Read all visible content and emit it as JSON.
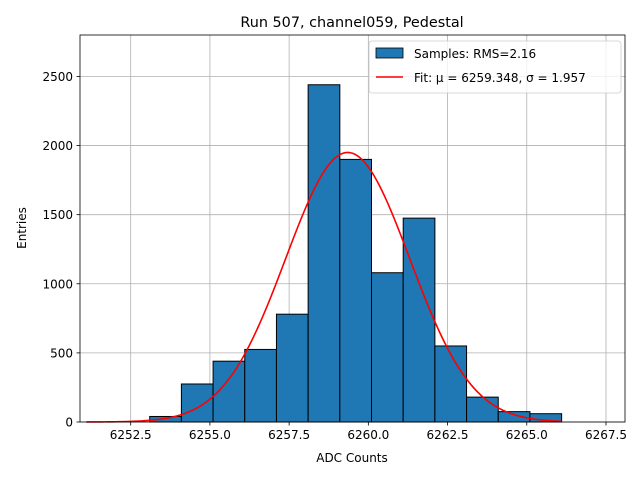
{
  "chart_data": {
    "type": "bar",
    "title": "Run 507, channel059, Pedestal",
    "xlabel": "ADC Counts",
    "ylabel": "Entries",
    "xlim": [
      6250.9,
      6268.1
    ],
    "ylim": [
      0,
      2800
    ],
    "grid": true,
    "legend_position": "top-right",
    "x_ticks": [
      {
        "value": 6252.5,
        "label": "6252.5"
      },
      {
        "value": 6255.0,
        "label": "6255.0"
      },
      {
        "value": 6257.5,
        "label": "6257.5"
      },
      {
        "value": 6260.0,
        "label": "6260.0"
      },
      {
        "value": 6262.5,
        "label": "6262.5"
      },
      {
        "value": 6265.0,
        "label": "6265.0"
      },
      {
        "value": 6267.5,
        "label": "6267.5"
      }
    ],
    "y_ticks": [
      {
        "value": 0,
        "label": "0"
      },
      {
        "value": 500,
        "label": "500"
      },
      {
        "value": 1000,
        "label": "1000"
      },
      {
        "value": 1500,
        "label": "1500"
      },
      {
        "value": 2000,
        "label": "2000"
      },
      {
        "value": 2500,
        "label": "2500"
      }
    ],
    "series": [
      {
        "name": "Samples: RMS=2.16",
        "kind": "histogram",
        "color": "#1f77b4",
        "edge_color": "#000000",
        "bins": [
          {
            "x0": 6253.1,
            "x1": 6254.1,
            "value": 40
          },
          {
            "x0": 6254.1,
            "x1": 6255.1,
            "value": 275
          },
          {
            "x0": 6255.1,
            "x1": 6256.1,
            "value": 440
          },
          {
            "x0": 6256.1,
            "x1": 6257.1,
            "value": 525
          },
          {
            "x0": 6257.1,
            "x1": 6258.1,
            "value": 780
          },
          {
            "x0": 6258.1,
            "x1": 6259.1,
            "value": 2440
          },
          {
            "x0": 6259.1,
            "x1": 6260.1,
            "value": 1900
          },
          {
            "x0": 6260.1,
            "x1": 6261.1,
            "value": 1080
          },
          {
            "x0": 6261.1,
            "x1": 6262.1,
            "value": 1475
          },
          {
            "x0": 6262.1,
            "x1": 6263.1,
            "value": 550
          },
          {
            "x0": 6263.1,
            "x1": 6264.1,
            "value": 180
          },
          {
            "x0": 6264.1,
            "x1": 6265.1,
            "value": 75
          },
          {
            "x0": 6265.1,
            "x1": 6266.1,
            "value": 60
          }
        ]
      },
      {
        "name": "Fit: μ = 6259.348, σ = 1.957",
        "kind": "gaussian",
        "color": "#ff0000",
        "mu": 6259.348,
        "sigma": 1.957,
        "amplitude": 1950,
        "x_range": [
          6251.1,
          6266.1
        ]
      }
    ]
  }
}
